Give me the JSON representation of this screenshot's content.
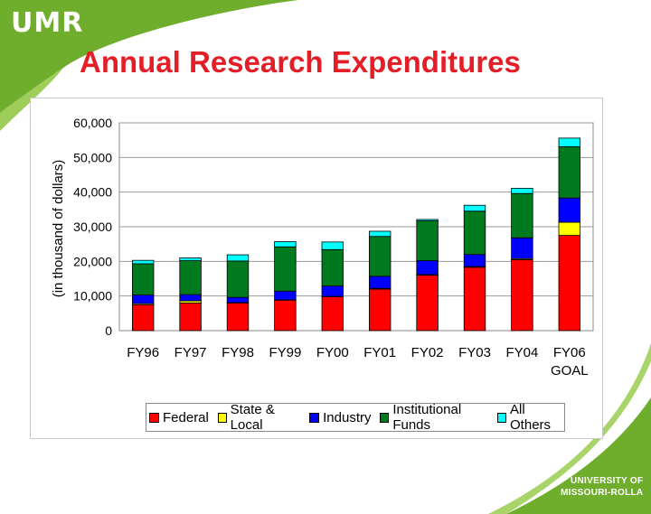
{
  "slide": {
    "brand": "UMR",
    "title": "Annual Research Expenditures",
    "footer_line1": "UNIVERSITY OF",
    "footer_line2": "MISSOURI-ROLLA"
  },
  "theme": {
    "accent_green": "#6fae2d",
    "title_red": "#e41e26"
  },
  "chart_data": {
    "type": "bar",
    "stacked": true,
    "title": "Annual Research Expenditures",
    "xlabel": "",
    "ylabel": "(in thousand of dollars)",
    "ylim": [
      0,
      60000
    ],
    "yticks": [
      0,
      10000,
      20000,
      30000,
      40000,
      50000,
      60000
    ],
    "ytick_labels": [
      "0",
      "10,000",
      "20,000",
      "30,000",
      "40,000",
      "50,000",
      "60,000"
    ],
    "categories": [
      "FY96",
      "FY97",
      "FY98",
      "FY99",
      "FY00",
      "FY01",
      "FY02",
      "FY03",
      "FY04",
      "FY06 GOAL"
    ],
    "series": [
      {
        "name": "Federal",
        "color": "#ff0000",
        "values": [
          7500,
          8000,
          8000,
          8800,
          9800,
          12000,
          16000,
          18300,
          20500,
          27500
        ]
      },
      {
        "name": "State & Local",
        "color": "#ffff00",
        "values": [
          300,
          600,
          100,
          100,
          100,
          200,
          200,
          200,
          300,
          3800
        ]
      },
      {
        "name": "Industry",
        "color": "#0000ff",
        "values": [
          2500,
          1800,
          1500,
          2500,
          3000,
          3500,
          4000,
          3500,
          6000,
          7000
        ]
      },
      {
        "name": "Institutional Funds",
        "color": "#007a1f",
        "values": [
          9000,
          9800,
          10500,
          12800,
          10500,
          11500,
          11500,
          12500,
          12800,
          14800
        ]
      },
      {
        "name": "All Others",
        "color": "#00ffff",
        "values": [
          1000,
          800,
          1800,
          1500,
          2200,
          1500,
          400,
          1700,
          1500,
          2500
        ]
      }
    ]
  }
}
